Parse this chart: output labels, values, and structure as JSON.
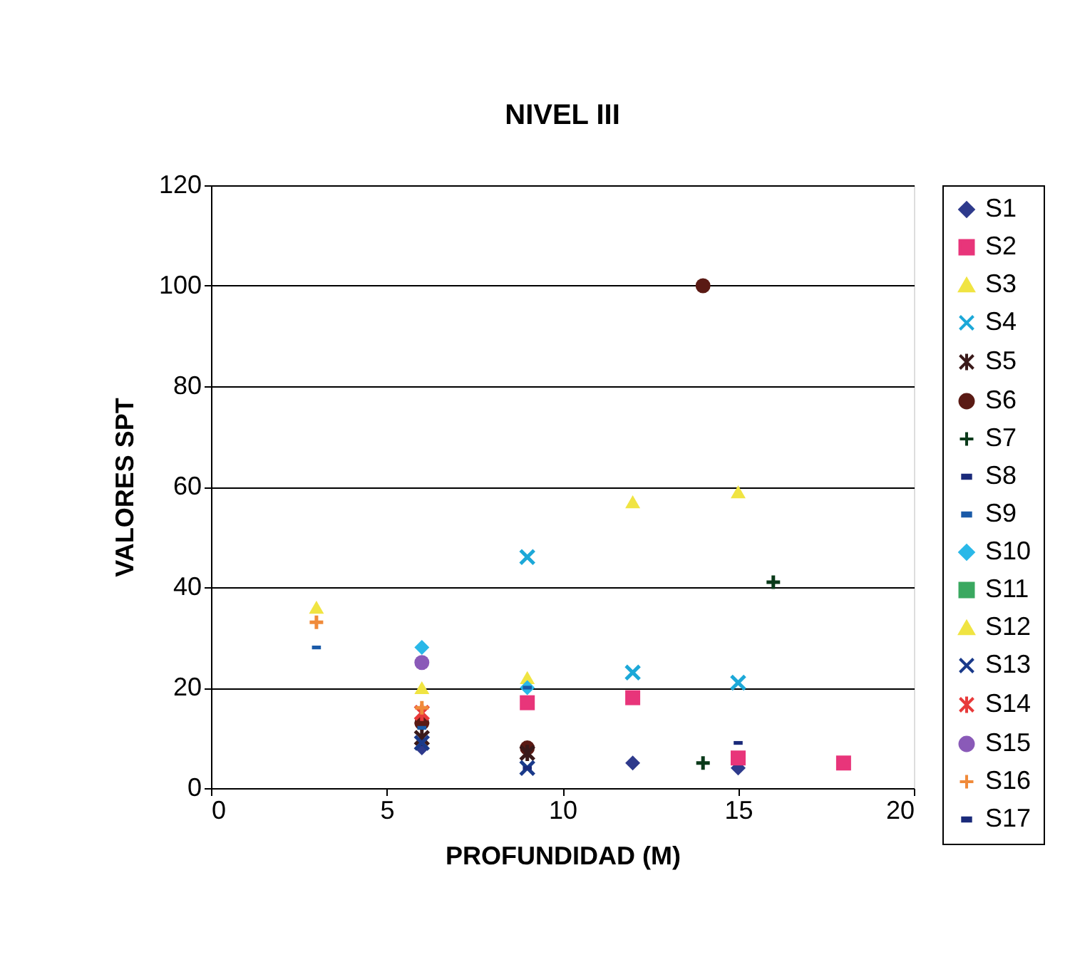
{
  "chart_data": {
    "type": "scatter",
    "title": "NIVEL III",
    "xlabel": "PROFUNDIDAD (M)",
    "ylabel": "VALORES SPT",
    "xlim": [
      0,
      20
    ],
    "xticks": [
      0,
      5,
      10,
      15,
      20
    ],
    "ylim": [
      0,
      120
    ],
    "yticks": [
      0,
      20,
      40,
      60,
      80,
      100,
      120
    ],
    "grid": "y",
    "legend": "right",
    "series": [
      {
        "name": "S1",
        "color": "#2e3a8c",
        "marker": "diamond",
        "x": [
          6,
          12,
          15
        ],
        "values": [
          8,
          5,
          4
        ]
      },
      {
        "name": "S2",
        "color": "#e8357a",
        "marker": "square",
        "x": [
          9,
          12,
          15,
          18
        ],
        "values": [
          17,
          18,
          6,
          5
        ]
      },
      {
        "name": "S3",
        "color": "#f0e442",
        "marker": "triangle",
        "x": [
          3,
          6,
          9
        ],
        "values": [
          36,
          20,
          22
        ]
      },
      {
        "name": "S4",
        "color": "#1ca8d8",
        "marker": "x",
        "x": [
          9,
          12,
          15
        ],
        "values": [
          46,
          23,
          21
        ]
      },
      {
        "name": "S5",
        "color": "#3a1a1a",
        "marker": "cross",
        "x": [
          6,
          9
        ],
        "values": [
          10,
          7
        ]
      },
      {
        "name": "S6",
        "color": "#5a1a14",
        "marker": "circle",
        "x": [
          6,
          9,
          14
        ],
        "values": [
          13,
          8,
          100
        ]
      },
      {
        "name": "S7",
        "color": "#0a3a1a",
        "marker": "plus",
        "x": [
          14,
          16
        ],
        "values": [
          5,
          41
        ]
      },
      {
        "name": "S8",
        "color": "#1a2a7a",
        "x": [
          15
        ],
        "values": [
          9
        ]
      },
      {
        "name": "S9",
        "color": "#1a5aa8",
        "x": [
          3,
          6,
          9
        ],
        "values": [
          28,
          12,
          20
        ]
      },
      {
        "name": "S10",
        "color": "#2ab8e8",
        "marker": "diamond",
        "x": [
          6,
          9
        ],
        "values": [
          28,
          20
        ]
      },
      {
        "name": "S11",
        "color": "#3aa860",
        "marker": "square"
      },
      {
        "name": "S12",
        "color": "#f0e442",
        "marker": "triangle",
        "x": [
          12,
          15
        ],
        "values": [
          57,
          59
        ]
      },
      {
        "name": "S13",
        "color": "#1a3a8a",
        "marker": "x",
        "x": [
          6,
          9
        ],
        "values": [
          9,
          4
        ]
      },
      {
        "name": "S14",
        "color": "#e83a3a",
        "marker": "cross",
        "x": [
          6
        ],
        "values": [
          15
        ]
      },
      {
        "name": "S15",
        "color": "#8a5ab8",
        "marker": "circle",
        "x": [
          6
        ],
        "values": [
          25
        ]
      },
      {
        "name": "S16",
        "color": "#f08a3a",
        "marker": "plus",
        "x": [
          3,
          6
        ],
        "values": [
          33,
          16
        ]
      },
      {
        "name": "S17",
        "color": "#1a2a7a",
        "x": [
          9
        ],
        "values": [
          4
        ]
      }
    ]
  }
}
